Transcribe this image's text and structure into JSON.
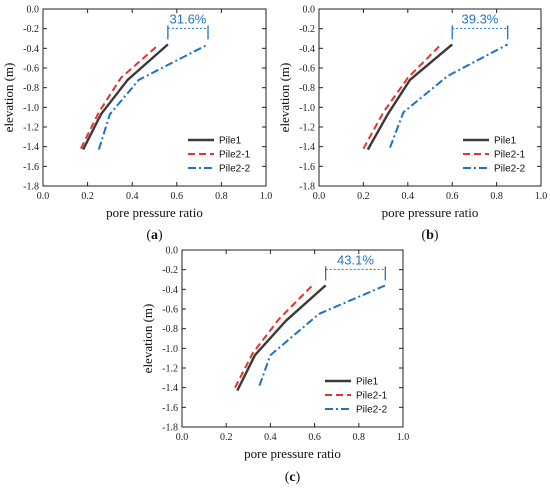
{
  "colors": {
    "pile1": "#3a3a3a",
    "pile2_1": "#e8322c",
    "pile2_2": "#1f72c4",
    "annot": "#1f72c4"
  },
  "chart_data": [
    {
      "type": "line",
      "panel_label": {
        "open": "(",
        "letter": "a",
        "close": ")"
      },
      "xlabel": "pore pressure ratio",
      "ylabel": "elevation (m)",
      "xlim": [
        0,
        1.0
      ],
      "ylim": [
        -1.8,
        0.0
      ],
      "x_ticks": [
        "0.0",
        "0.2",
        "0.4",
        "0.6",
        "0.8",
        "1.0"
      ],
      "y_ticks": [
        "0.0",
        "-0.2",
        "-0.4",
        "-0.6",
        "-0.8",
        "-1.0",
        "-1.2",
        "-1.4",
        "-1.6",
        "-1.8"
      ],
      "annotation": "31.6%",
      "legend_position": "bottom-right",
      "series": [
        {
          "name": "Pile1",
          "style": "solid",
          "points": [
            [
              0.18,
              -1.43
            ],
            [
              0.26,
              -1.07
            ],
            [
              0.38,
              -0.72
            ],
            [
              0.56,
              -0.36
            ]
          ]
        },
        {
          "name": "Pile2-1",
          "style": "dashed",
          "points": [
            [
              0.17,
              -1.42
            ],
            [
              0.25,
              -1.05
            ],
            [
              0.35,
              -0.7
            ],
            [
              0.52,
              -0.36
            ]
          ]
        },
        {
          "name": "Pile2-2",
          "style": "dashdot",
          "points": [
            [
              0.25,
              -1.43
            ],
            [
              0.3,
              -1.07
            ],
            [
              0.43,
              -0.72
            ],
            [
              0.74,
              -0.36
            ]
          ]
        }
      ]
    },
    {
      "type": "line",
      "panel_label": {
        "open": "(",
        "letter": "b",
        "close": ")"
      },
      "xlabel": "pore pressure ratio",
      "ylabel": "elevation (m)",
      "xlim": [
        0,
        1.0
      ],
      "ylim": [
        -1.8,
        0.0
      ],
      "x_ticks": [
        "0.0",
        "0.2",
        "0.4",
        "0.6",
        "0.8",
        "1.0"
      ],
      "y_ticks": [
        "0.0",
        "-0.2",
        "-0.4",
        "-0.6",
        "-0.8",
        "-1.0",
        "-1.2",
        "-1.4",
        "-1.6",
        "-1.8"
      ],
      "annotation": "39.3%",
      "legend_position": "bottom-right",
      "series": [
        {
          "name": "Pile1",
          "style": "solid",
          "points": [
            [
              0.22,
              -1.43
            ],
            [
              0.31,
              -1.07
            ],
            [
              0.41,
              -0.72
            ],
            [
              0.6,
              -0.36
            ]
          ]
        },
        {
          "name": "Pile2-1",
          "style": "dashed",
          "points": [
            [
              0.2,
              -1.42
            ],
            [
              0.29,
              -1.05
            ],
            [
              0.4,
              -0.7
            ],
            [
              0.55,
              -0.36
            ]
          ]
        },
        {
          "name": "Pile2-2",
          "style": "dashdot",
          "points": [
            [
              0.32,
              -1.41
            ],
            [
              0.38,
              -1.05
            ],
            [
              0.58,
              -0.68
            ],
            [
              0.85,
              -0.36
            ]
          ]
        }
      ]
    },
    {
      "type": "line",
      "panel_label": {
        "open": "(",
        "letter": "c",
        "close": ")"
      },
      "xlabel": "pore pressure ratio",
      "ylabel": "elevation (m)",
      "xlim": [
        0,
        1.0
      ],
      "ylim": [
        -1.8,
        0.0
      ],
      "x_ticks": [
        "0.0",
        "0.2",
        "0.4",
        "0.6",
        "0.8",
        "1.0"
      ],
      "y_ticks": [
        "0.0",
        "-0.2",
        "-0.4",
        "-0.6",
        "-0.8",
        "-1.0",
        "-1.2",
        "-1.4",
        "-1.6",
        "-1.8"
      ],
      "annotation": "43.1%",
      "legend_position": "bottom-right",
      "series": [
        {
          "name": "Pile1",
          "style": "solid",
          "points": [
            [
              0.25,
              -1.43
            ],
            [
              0.33,
              -1.07
            ],
            [
              0.47,
              -0.72
            ],
            [
              0.65,
              -0.36
            ]
          ]
        },
        {
          "name": "Pile2-1",
          "style": "dashed",
          "points": [
            [
              0.24,
              -1.4
            ],
            [
              0.32,
              -1.05
            ],
            [
              0.44,
              -0.7
            ],
            [
              0.59,
              -0.36
            ]
          ]
        },
        {
          "name": "Pile2-2",
          "style": "dashdot",
          "points": [
            [
              0.35,
              -1.38
            ],
            [
              0.4,
              -1.07
            ],
            [
              0.62,
              -0.65
            ],
            [
              0.92,
              -0.36
            ]
          ]
        }
      ]
    }
  ]
}
